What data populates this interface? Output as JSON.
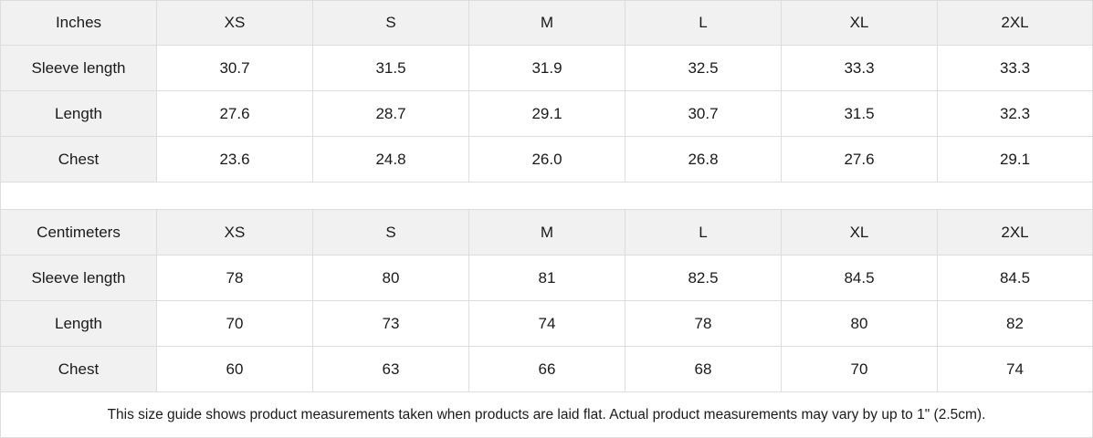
{
  "tables": [
    {
      "unit": "Inches",
      "sizes": [
        "XS",
        "S",
        "M",
        "L",
        "XL",
        "2XL"
      ],
      "rows": [
        {
          "label": "Sleeve length",
          "values": [
            "30.7",
            "31.5",
            "31.9",
            "32.5",
            "33.3",
            "33.3"
          ]
        },
        {
          "label": "Length",
          "values": [
            "27.6",
            "28.7",
            "29.1",
            "30.7",
            "31.5",
            "32.3"
          ]
        },
        {
          "label": "Chest",
          "values": [
            "23.6",
            "24.8",
            "26.0",
            "26.8",
            "27.6",
            "29.1"
          ]
        }
      ]
    },
    {
      "unit": "Centimeters",
      "sizes": [
        "XS",
        "S",
        "M",
        "L",
        "XL",
        "2XL"
      ],
      "rows": [
        {
          "label": "Sleeve length",
          "values": [
            "78",
            "80",
            "81",
            "82.5",
            "84.5",
            "84.5"
          ]
        },
        {
          "label": "Length",
          "values": [
            "70",
            "73",
            "74",
            "78",
            "80",
            "82"
          ]
        },
        {
          "label": "Chest",
          "values": [
            "60",
            "63",
            "66",
            "68",
            "70",
            "74"
          ]
        }
      ]
    }
  ],
  "footnote": "This size guide shows product measurements taken when products are laid flat.  Actual product measurements may vary by up to 1\" (2.5cm).",
  "colors": {
    "header_bg": "#f1f1f1",
    "border": "#dddddd"
  }
}
